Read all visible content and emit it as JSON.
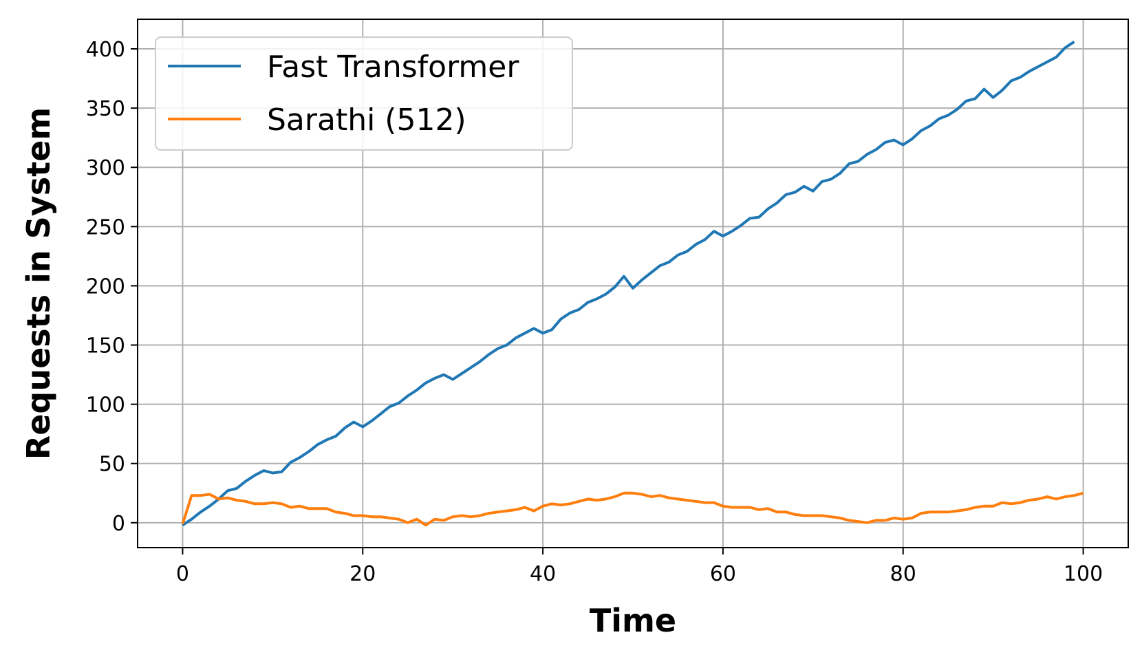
{
  "chart_data": {
    "type": "line",
    "title": "",
    "xlabel": "Time",
    "ylabel": "Requests in System",
    "xlim": [
      -5,
      105
    ],
    "ylim": [
      -21,
      425
    ],
    "xticks": [
      0,
      20,
      40,
      60,
      80,
      100
    ],
    "yticks": [
      0,
      50,
      100,
      150,
      200,
      250,
      300,
      350,
      400
    ],
    "grid": true,
    "legend_position": "top-left",
    "series": [
      {
        "name": "Fast Transformer",
        "color": "#1f77b4",
        "x": [
          0,
          1,
          2,
          3,
          4,
          5,
          6,
          7,
          8,
          9,
          10,
          11,
          12,
          13,
          14,
          15,
          16,
          17,
          18,
          19,
          20,
          21,
          22,
          23,
          24,
          25,
          26,
          27,
          28,
          29,
          30,
          31,
          32,
          33,
          34,
          35,
          36,
          37,
          38,
          39,
          40,
          41,
          42,
          43,
          44,
          45,
          46,
          47,
          48,
          49,
          50,
          51,
          52,
          53,
          54,
          55,
          56,
          57,
          58,
          59,
          60,
          61,
          62,
          63,
          64,
          65,
          66,
          67,
          68,
          69,
          70,
          71,
          72,
          73,
          74,
          75,
          76,
          77,
          78,
          79,
          80,
          81,
          82,
          83,
          84,
          85,
          86,
          87,
          88,
          89,
          90,
          91,
          92,
          93,
          94,
          95,
          96,
          97,
          98,
          99
        ],
        "y": [
          -2,
          3,
          9,
          14,
          20,
          27,
          29,
          35,
          40,
          44,
          42,
          43,
          51,
          55,
          60,
          66,
          70,
          73,
          80,
          85,
          81,
          86,
          92,
          98,
          101,
          107,
          112,
          118,
          122,
          125,
          121,
          126,
          131,
          136,
          142,
          147,
          150,
          156,
          160,
          164,
          160,
          163,
          172,
          177,
          180,
          186,
          189,
          193,
          199,
          208,
          198,
          205,
          211,
          217,
          220,
          226,
          229,
          235,
          239,
          246,
          242,
          246,
          251,
          257,
          258,
          265,
          270,
          277,
          279,
          284,
          280,
          288,
          290,
          295,
          303,
          305,
          311,
          315,
          321,
          323,
          319,
          324,
          331,
          335,
          341,
          344,
          349,
          356,
          358,
          366,
          359,
          365,
          373,
          376,
          381,
          385,
          389,
          393,
          401,
          406
        ]
      },
      {
        "name": "Sarathi (512)",
        "color": "#ff7f0e",
        "x": [
          0,
          1,
          2,
          3,
          4,
          5,
          6,
          7,
          8,
          9,
          10,
          11,
          12,
          13,
          14,
          15,
          16,
          17,
          18,
          19,
          20,
          21,
          22,
          23,
          24,
          25,
          26,
          27,
          28,
          29,
          30,
          31,
          32,
          33,
          34,
          35,
          36,
          37,
          38,
          39,
          40,
          41,
          42,
          43,
          44,
          45,
          46,
          47,
          48,
          49,
          50,
          51,
          52,
          53,
          54,
          55,
          56,
          57,
          58,
          59,
          60,
          61,
          62,
          63,
          64,
          65,
          66,
          67,
          68,
          69,
          70,
          71,
          72,
          73,
          74,
          75,
          76,
          77,
          78,
          79,
          80,
          81,
          82,
          83,
          84,
          85,
          86,
          87,
          88,
          89,
          90,
          91,
          92,
          93,
          94,
          95,
          96,
          97,
          98,
          99,
          100
        ],
        "y": [
          -1,
          23,
          23,
          24,
          20,
          21,
          19,
          18,
          16,
          16,
          17,
          16,
          13,
          14,
          12,
          12,
          12,
          9,
          8,
          6,
          6,
          5,
          5,
          4,
          3,
          0,
          3,
          -2,
          3,
          2,
          5,
          6,
          5,
          6,
          8,
          9,
          10,
          11,
          13,
          10,
          14,
          16,
          15,
          16,
          18,
          20,
          19,
          20,
          22,
          25,
          25,
          24,
          22,
          23,
          21,
          20,
          19,
          18,
          17,
          17,
          14,
          13,
          13,
          13,
          11,
          12,
          9,
          9,
          7,
          6,
          6,
          6,
          5,
          4,
          2,
          1,
          0,
          2,
          2,
          4,
          3,
          4,
          8,
          9,
          9,
          9,
          10,
          11,
          13,
          14,
          14,
          17,
          16,
          17,
          19,
          20,
          22,
          20,
          22,
          23,
          25
        ]
      }
    ]
  }
}
